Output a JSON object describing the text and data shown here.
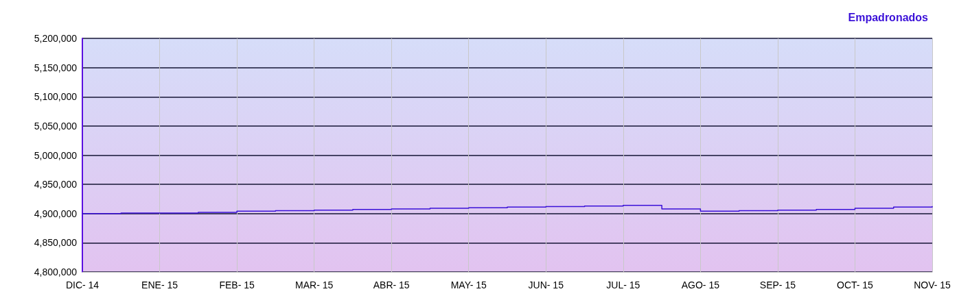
{
  "chart_data": {
    "type": "step",
    "categories": [
      "DIC- 14",
      null,
      "ENE- 15",
      null,
      "FEB- 15",
      null,
      "MAR- 15",
      null,
      "ABR- 15",
      null,
      "MAY- 15",
      null,
      "JUN- 15",
      null,
      "JUL- 15",
      null,
      "AGO- 15",
      null,
      "SEP- 15",
      null,
      "OCT- 15",
      null,
      "NOV- 15"
    ],
    "series": [
      {
        "name": "Empadronados",
        "color": "#3a10d8",
        "values": [
          4900000,
          4901000,
          4901000,
          4902000,
          4904000,
          4905000,
          4906000,
          4907000,
          4908000,
          4909000,
          4910000,
          4911000,
          4912000,
          4913000,
          4914000,
          4908000,
          4904000,
          4905000,
          4906000,
          4907000,
          4909000,
          4911000,
          4912000
        ]
      }
    ],
    "ylim": [
      4800000,
      5200000
    ],
    "yticks": [
      {
        "value": 4800000,
        "label": "4,800,000"
      },
      {
        "value": 4850000,
        "label": "4,850,000"
      },
      {
        "value": 4900000,
        "label": "4,900,000"
      },
      {
        "value": 4950000,
        "label": "4,950,000"
      },
      {
        "value": 5000000,
        "label": "5,000,000"
      },
      {
        "value": 5050000,
        "label": "5,050,000"
      },
      {
        "value": 5100000,
        "label": "5,100,000"
      },
      {
        "value": 5150000,
        "label": "5,150,000"
      },
      {
        "value": 5200000,
        "label": "5,200,000"
      }
    ],
    "grid": true,
    "legend": "top right",
    "marker": "none",
    "line_style": "solid"
  }
}
